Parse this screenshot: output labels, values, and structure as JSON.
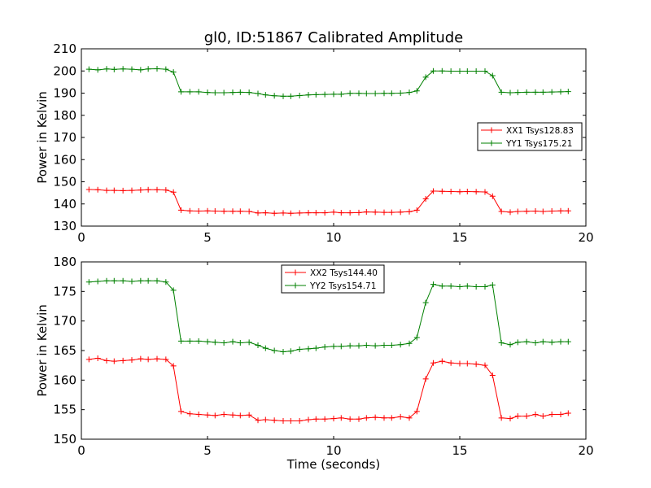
{
  "chart_data": [
    {
      "type": "line",
      "title": "gl0, ID:51867 Calibrated Amplitude",
      "xlabel": "",
      "ylabel": "Power in Kelvin",
      "xlim": [
        0,
        20
      ],
      "ylim": [
        130,
        210
      ],
      "xticks": [
        "0",
        "5",
        "10",
        "15",
        "20"
      ],
      "yticks": [
        "130",
        "140",
        "150",
        "160",
        "170",
        "180",
        "190",
        "200",
        "210"
      ],
      "legend_position": "right",
      "grid": false,
      "x": [
        0.3,
        0.65,
        1.0,
        1.3,
        1.65,
        2.0,
        2.35,
        2.65,
        3.0,
        3.35,
        3.65,
        3.95,
        4.3,
        4.65,
        5.0,
        5.3,
        5.65,
        6.0,
        6.3,
        6.65,
        7.0,
        7.3,
        7.65,
        8.0,
        8.3,
        8.65,
        9.0,
        9.3,
        9.65,
        10.0,
        10.3,
        10.65,
        11.0,
        11.3,
        11.65,
        12.0,
        12.3,
        12.65,
        13.0,
        13.3,
        13.65,
        13.95,
        14.3,
        14.65,
        15.0,
        15.3,
        15.65,
        16.0,
        16.3,
        16.65,
        17.0,
        17.3,
        17.65,
        18.0,
        18.3,
        18.65,
        19.0,
        19.3
      ],
      "series": [
        {
          "name": "XX1 Tsys128.83",
          "color": "#ff0000",
          "values": [
            146.5,
            146.4,
            146.1,
            146.1,
            146.0,
            146.1,
            146.3,
            146.4,
            146.4,
            146.3,
            145.3,
            137.2,
            136.9,
            136.8,
            136.9,
            136.8,
            136.7,
            136.7,
            136.7,
            136.6,
            135.9,
            136.0,
            135.8,
            135.9,
            135.8,
            135.9,
            136.0,
            136.0,
            136.0,
            136.3,
            136.0,
            136.0,
            136.1,
            136.4,
            136.3,
            136.2,
            136.2,
            136.3,
            136.5,
            137.2,
            142.3,
            145.8,
            145.7,
            145.6,
            145.5,
            145.6,
            145.5,
            145.4,
            143.5,
            136.6,
            136.3,
            136.6,
            136.7,
            136.8,
            136.6,
            136.8,
            136.9,
            136.9
          ]
        },
        {
          "name": "YY1 Tsys175.21",
          "color": "#008000",
          "values": [
            200.8,
            200.5,
            200.9,
            200.7,
            200.9,
            200.8,
            200.5,
            200.9,
            201.0,
            200.8,
            199.5,
            190.6,
            190.6,
            190.6,
            190.3,
            190.2,
            190.2,
            190.3,
            190.4,
            190.3,
            189.8,
            189.2,
            188.8,
            188.6,
            188.6,
            188.9,
            189.2,
            189.3,
            189.4,
            189.5,
            189.5,
            189.9,
            189.9,
            189.8,
            189.8,
            189.9,
            189.9,
            190.0,
            190.3,
            191.0,
            197.2,
            200.0,
            200.0,
            199.9,
            199.9,
            199.9,
            199.9,
            199.9,
            197.9,
            190.4,
            190.2,
            190.3,
            190.4,
            190.4,
            190.4,
            190.5,
            190.6,
            190.7
          ]
        }
      ]
    },
    {
      "type": "line",
      "title": "",
      "xlabel": "Time (seconds)",
      "ylabel": "Power in Kelvin",
      "xlim": [
        0,
        20
      ],
      "ylim": [
        150,
        180
      ],
      "xticks": [
        "0",
        "5",
        "10",
        "15",
        "20"
      ],
      "yticks": [
        "150",
        "155",
        "160",
        "165",
        "170",
        "175",
        "180"
      ],
      "legend_position": "top-center",
      "grid": false,
      "x": [
        0.3,
        0.65,
        1.0,
        1.3,
        1.65,
        2.0,
        2.35,
        2.65,
        3.0,
        3.35,
        3.65,
        3.95,
        4.3,
        4.65,
        5.0,
        5.3,
        5.65,
        6.0,
        6.3,
        6.65,
        7.0,
        7.3,
        7.65,
        8.0,
        8.3,
        8.65,
        9.0,
        9.3,
        9.65,
        10.0,
        10.3,
        10.65,
        11.0,
        11.3,
        11.65,
        12.0,
        12.3,
        12.65,
        13.0,
        13.3,
        13.65,
        13.95,
        14.3,
        14.65,
        15.0,
        15.3,
        15.65,
        16.0,
        16.3,
        16.65,
        17.0,
        17.3,
        17.65,
        18.0,
        18.3,
        18.65,
        19.0,
        19.3
      ],
      "series": [
        {
          "name": "XX2 Tsys144.40",
          "color": "#ff0000",
          "values": [
            163.5,
            163.7,
            163.3,
            163.2,
            163.3,
            163.4,
            163.6,
            163.5,
            163.6,
            163.5,
            162.4,
            154.7,
            154.3,
            154.2,
            154.1,
            154.0,
            154.2,
            154.1,
            154.0,
            154.1,
            153.2,
            153.3,
            153.2,
            153.1,
            153.1,
            153.1,
            153.3,
            153.4,
            153.4,
            153.5,
            153.6,
            153.4,
            153.4,
            153.6,
            153.7,
            153.6,
            153.6,
            153.8,
            153.6,
            154.7,
            160.2,
            162.9,
            163.2,
            162.9,
            162.8,
            162.8,
            162.7,
            162.5,
            160.8,
            153.6,
            153.5,
            153.9,
            153.9,
            154.2,
            153.9,
            154.2,
            154.2,
            154.4
          ]
        },
        {
          "name": "YY2 Tsys154.71",
          "color": "#008000",
          "values": [
            176.6,
            176.7,
            176.8,
            176.8,
            176.8,
            176.7,
            176.8,
            176.8,
            176.8,
            176.6,
            175.2,
            166.6,
            166.6,
            166.6,
            166.5,
            166.4,
            166.3,
            166.5,
            166.3,
            166.4,
            165.9,
            165.4,
            165.0,
            164.8,
            164.9,
            165.2,
            165.3,
            165.4,
            165.6,
            165.7,
            165.7,
            165.8,
            165.8,
            165.9,
            165.8,
            165.9,
            165.9,
            166.0,
            166.2,
            167.2,
            173.1,
            176.2,
            175.9,
            175.9,
            175.8,
            175.9,
            175.8,
            175.8,
            176.1,
            166.3,
            166.0,
            166.4,
            166.5,
            166.3,
            166.5,
            166.4,
            166.5,
            166.5
          ]
        }
      ]
    }
  ]
}
